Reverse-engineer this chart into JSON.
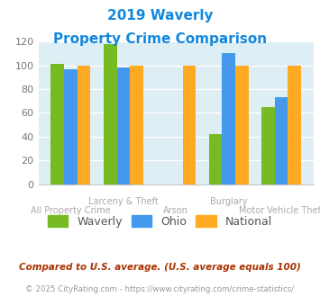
{
  "title_line1": "2019 Waverly",
  "title_line2": "Property Crime Comparison",
  "categories": [
    "All Property Crime",
    "Larceny & Theft",
    "Arson",
    "Burglary",
    "Motor Vehicle Theft"
  ],
  "waverly": [
    101,
    118,
    0,
    42,
    65
  ],
  "ohio": [
    97,
    98,
    0,
    110,
    73
  ],
  "national": [
    100,
    100,
    100,
    100,
    100
  ],
  "color_waverly": "#77bb22",
  "color_ohio": "#4499ee",
  "color_national": "#ffaa22",
  "ylim": [
    0,
    120
  ],
  "yticks": [
    0,
    20,
    40,
    60,
    80,
    100,
    120
  ],
  "bg_color": "#ddeef5",
  "footnote1": "Compared to U.S. average. (U.S. average equals 100)",
  "footnote2": "© 2025 CityRating.com - https://www.cityrating.com/crime-statistics/",
  "title_color": "#1188dd",
  "footnote1_color": "#aa3300",
  "footnote2_color": "#999999",
  "label_color": "#aaaaaa",
  "top_row_labels": {
    "1": "Larceny & Theft",
    "3": "Burglary"
  },
  "bottom_row_labels": {
    "0": "All Property Crime",
    "2": "Arson",
    "4": "Motor Vehicle Theft"
  }
}
